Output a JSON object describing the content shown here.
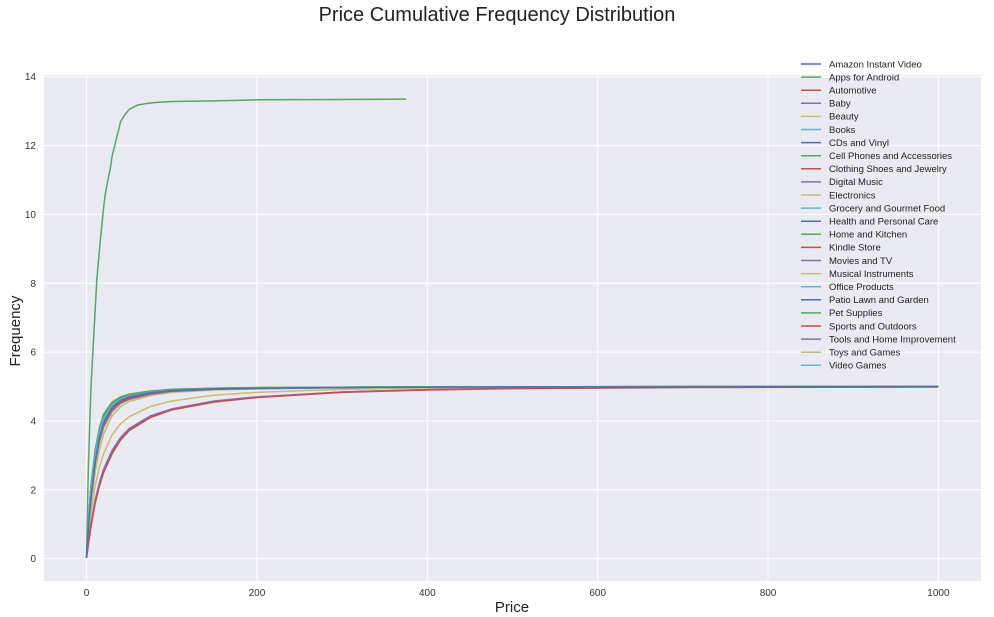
{
  "chart_data": {
    "type": "line",
    "title": "Price Cumulative Frequency Distribution",
    "xlabel": "Price",
    "ylabel": "Frequency",
    "xlim": [
      -50,
      1050
    ],
    "ylim": [
      -0.65,
      14.05
    ],
    "xticks": [
      0,
      200,
      400,
      600,
      800,
      1000
    ],
    "yticks": [
      0,
      2,
      4,
      6,
      8,
      10,
      12,
      14
    ],
    "grid": true,
    "legend_position": "top-right",
    "colors": [
      "#4c72b0",
      "#55a868",
      "#c44e52",
      "#8172b2",
      "#ccb974",
      "#64b5cd"
    ],
    "series": [
      {
        "name": "Amazon Instant Video",
        "x": [
          0,
          2,
          5,
          10,
          15,
          20,
          30,
          40,
          50,
          75,
          100,
          150,
          200,
          300,
          400,
          500,
          700,
          1000
        ],
        "y": [
          0.03,
          0.8,
          1.75,
          2.8,
          3.5,
          3.95,
          4.4,
          4.6,
          4.7,
          4.82,
          4.88,
          4.93,
          4.95,
          4.97,
          4.98,
          4.99,
          4.99,
          5.0
        ]
      },
      {
        "name": "Apps for Android",
        "x": [
          0,
          2,
          5,
          8,
          10,
          12,
          15,
          18,
          20,
          22,
          25,
          28,
          30,
          35,
          40,
          45,
          50,
          60,
          70,
          80,
          100,
          150,
          200,
          300,
          375
        ],
        "y": [
          0.1,
          2.6,
          4.9,
          6.3,
          7.2,
          8.1,
          8.95,
          9.7,
          10.2,
          10.6,
          11.0,
          11.35,
          11.7,
          12.2,
          12.7,
          12.9,
          13.05,
          13.18,
          13.22,
          13.25,
          13.28,
          13.3,
          13.33,
          13.34,
          13.35
        ]
      },
      {
        "name": "Automotive",
        "x": [
          0,
          2,
          5,
          10,
          15,
          20,
          30,
          40,
          50,
          75,
          100,
          150,
          200,
          300,
          400,
          500,
          700,
          1000
        ],
        "y": [
          0.02,
          0.4,
          0.9,
          1.6,
          2.1,
          2.5,
          3.05,
          3.45,
          3.72,
          4.1,
          4.32,
          4.55,
          4.68,
          4.83,
          4.9,
          4.94,
          4.97,
          4.99
        ]
      },
      {
        "name": "Baby",
        "x": [
          0,
          2,
          5,
          10,
          15,
          20,
          30,
          40,
          50,
          75,
          100,
          150,
          200,
          300,
          400,
          500,
          700,
          1000
        ],
        "y": [
          0.03,
          0.5,
          1.0,
          1.7,
          2.2,
          2.6,
          3.15,
          3.52,
          3.78,
          4.15,
          4.35,
          4.58,
          4.7,
          4.84,
          4.91,
          4.95,
          4.98,
          4.99
        ]
      },
      {
        "name": "Beauty",
        "x": [
          0,
          2,
          5,
          10,
          15,
          20,
          30,
          40,
          50,
          75,
          100,
          150,
          200,
          300,
          400,
          500,
          700,
          1000
        ],
        "y": [
          0.03,
          0.65,
          1.3,
          2.1,
          2.65,
          3.05,
          3.6,
          3.92,
          4.12,
          4.42,
          4.58,
          4.75,
          4.83,
          4.92,
          4.96,
          4.98,
          4.99,
          5.0
        ]
      },
      {
        "name": "Books",
        "x": [
          0,
          2,
          5,
          10,
          15,
          20,
          30,
          40,
          50,
          75,
          100,
          150,
          200,
          300,
          400,
          500,
          700,
          1000
        ],
        "y": [
          0.03,
          0.95,
          1.95,
          3.0,
          3.65,
          4.05,
          4.45,
          4.62,
          4.72,
          4.83,
          4.89,
          4.93,
          4.95,
          4.97,
          4.98,
          4.99,
          4.99,
          5.0
        ]
      },
      {
        "name": "CDs and Vinyl",
        "x": [
          0,
          2,
          5,
          10,
          15,
          20,
          30,
          40,
          50,
          75,
          100,
          150,
          200,
          300,
          400,
          500,
          700,
          1000
        ],
        "y": [
          0.03,
          0.9,
          1.9,
          2.95,
          3.6,
          4.0,
          4.42,
          4.6,
          4.7,
          4.82,
          4.88,
          4.93,
          4.95,
          4.97,
          4.98,
          4.99,
          4.99,
          5.0
        ]
      },
      {
        "name": "Cell Phones and Accessories",
        "x": [
          0,
          2,
          5,
          10,
          15,
          20,
          30,
          40,
          50,
          75,
          100,
          150,
          200,
          300,
          400,
          500,
          700,
          1000
        ],
        "y": [
          0.03,
          1.0,
          2.05,
          3.1,
          3.75,
          4.15,
          4.52,
          4.68,
          4.76,
          4.86,
          4.91,
          4.95,
          4.96,
          4.98,
          4.99,
          4.99,
          5.0,
          5.0
        ]
      },
      {
        "name": "Clothing Shoes and Jewelry",
        "x": [
          0,
          2,
          5,
          10,
          15,
          20,
          30,
          40,
          50,
          75,
          100,
          150,
          200,
          300,
          400,
          500,
          700,
          1000
        ],
        "y": [
          0.03,
          0.85,
          1.8,
          2.85,
          3.5,
          3.92,
          4.36,
          4.56,
          4.66,
          4.8,
          4.87,
          4.92,
          4.95,
          4.97,
          4.98,
          4.99,
          4.99,
          5.0
        ]
      },
      {
        "name": "Digital Music",
        "x": [
          0,
          2,
          5,
          10,
          15,
          20,
          30,
          40,
          50,
          75,
          100,
          150,
          200,
          300,
          400,
          500,
          700,
          1000
        ],
        "y": [
          0.03,
          0.8,
          1.7,
          2.75,
          3.42,
          3.85,
          4.3,
          4.52,
          4.63,
          4.78,
          4.86,
          4.92,
          4.94,
          4.97,
          4.98,
          4.99,
          4.99,
          5.0
        ]
      },
      {
        "name": "Electronics",
        "x": [
          0,
          2,
          5,
          10,
          15,
          20,
          30,
          40,
          50,
          75,
          100,
          150,
          200,
          300,
          400,
          500,
          700,
          1000
        ],
        "y": [
          0.03,
          0.75,
          1.6,
          2.65,
          3.32,
          3.78,
          4.26,
          4.5,
          4.62,
          4.77,
          4.85,
          4.91,
          4.94,
          4.97,
          4.98,
          4.99,
          4.99,
          5.0
        ]
      },
      {
        "name": "Grocery and Gourmet Food",
        "x": [
          0,
          2,
          5,
          10,
          15,
          20,
          30,
          40,
          50,
          75,
          100,
          150,
          200,
          300,
          400,
          500,
          700,
          1000
        ],
        "y": [
          0.03,
          0.95,
          2.0,
          3.05,
          3.7,
          4.1,
          4.48,
          4.65,
          4.74,
          4.85,
          4.9,
          4.94,
          4.96,
          4.98,
          4.99,
          4.99,
          5.0,
          5.0
        ]
      },
      {
        "name": "Health and Personal Care",
        "x": [
          0,
          2,
          5,
          10,
          15,
          20,
          30,
          40,
          50,
          75,
          100,
          150,
          200,
          300,
          400,
          500,
          700,
          1000
        ],
        "y": [
          0.03,
          0.88,
          1.85,
          2.9,
          3.55,
          3.96,
          4.4,
          4.58,
          4.68,
          4.81,
          4.88,
          4.93,
          4.95,
          4.97,
          4.98,
          4.99,
          4.99,
          5.0
        ]
      },
      {
        "name": "Home and Kitchen",
        "x": [
          0,
          2,
          5,
          10,
          15,
          20,
          30,
          40,
          50,
          75,
          100,
          150,
          200,
          300,
          400,
          500,
          700,
          1000
        ],
        "y": [
          0.03,
          1.05,
          2.1,
          3.15,
          3.8,
          4.2,
          4.55,
          4.7,
          4.78,
          4.87,
          4.92,
          4.95,
          4.97,
          4.98,
          4.99,
          4.99,
          5.0,
          5.0
        ]
      },
      {
        "name": "Kindle Store",
        "x": [
          0,
          2,
          5,
          10,
          15,
          20,
          30,
          40,
          50,
          75,
          100,
          150,
          200,
          300,
          400,
          500,
          700,
          1000
        ],
        "y": [
          0.02,
          0.45,
          0.95,
          1.65,
          2.15,
          2.55,
          3.1,
          3.5,
          3.75,
          4.12,
          4.33,
          4.56,
          4.69,
          4.84,
          4.91,
          4.95,
          4.98,
          4.99
        ]
      },
      {
        "name": "Movies and TV",
        "x": [
          0,
          2,
          5,
          10,
          15,
          20,
          30,
          40,
          50,
          75,
          100,
          150,
          200,
          300,
          400,
          500,
          700,
          1000
        ],
        "y": [
          0.03,
          0.82,
          1.75,
          2.8,
          3.45,
          3.88,
          4.33,
          4.54,
          4.65,
          4.79,
          4.86,
          4.92,
          4.94,
          4.97,
          4.98,
          4.99,
          4.99,
          5.0
        ]
      },
      {
        "name": "Musical Instruments",
        "x": [
          0,
          2,
          5,
          10,
          15,
          20,
          30,
          40,
          50,
          75,
          100,
          150,
          200,
          300,
          400,
          500,
          700,
          1000
        ],
        "y": [
          0.03,
          0.7,
          1.5,
          2.5,
          3.15,
          3.62,
          4.15,
          4.42,
          4.56,
          4.74,
          4.83,
          4.9,
          4.93,
          4.96,
          4.98,
          4.99,
          4.99,
          5.0
        ]
      },
      {
        "name": "Office Products",
        "x": [
          0,
          2,
          5,
          10,
          15,
          20,
          30,
          40,
          50,
          75,
          100,
          150,
          200,
          300,
          400,
          500,
          700,
          1000
        ],
        "y": [
          0.03,
          0.9,
          1.9,
          2.95,
          3.6,
          4.02,
          4.44,
          4.61,
          4.71,
          4.83,
          4.89,
          4.93,
          4.95,
          4.97,
          4.98,
          4.99,
          4.99,
          5.0
        ]
      },
      {
        "name": "Patio Lawn and Garden",
        "x": [
          0,
          2,
          5,
          10,
          15,
          20,
          30,
          40,
          50,
          75,
          100,
          150,
          200,
          300,
          400,
          500,
          700,
          1000
        ],
        "y": [
          0.03,
          0.78,
          1.68,
          2.72,
          3.38,
          3.82,
          4.28,
          4.51,
          4.62,
          4.78,
          4.85,
          4.91,
          4.94,
          4.97,
          4.98,
          4.99,
          4.99,
          5.0
        ]
      },
      {
        "name": "Pet Supplies",
        "x": [
          0,
          2,
          5,
          10,
          15,
          20,
          30,
          40,
          50,
          75,
          100,
          150,
          200,
          300,
          400,
          500,
          700,
          1000
        ],
        "y": [
          0.03,
          1.0,
          2.05,
          3.12,
          3.77,
          4.17,
          4.53,
          4.69,
          4.77,
          4.86,
          4.91,
          4.95,
          4.96,
          4.98,
          4.99,
          4.99,
          5.0,
          5.0
        ]
      },
      {
        "name": "Sports and Outdoors",
        "x": [
          0,
          2,
          5,
          10,
          15,
          20,
          30,
          40,
          50,
          75,
          100,
          150,
          200,
          300,
          400,
          500,
          700,
          1000
        ],
        "y": [
          0.03,
          0.86,
          1.82,
          2.87,
          3.52,
          3.94,
          4.38,
          4.57,
          4.67,
          4.8,
          4.87,
          4.92,
          4.95,
          4.97,
          4.98,
          4.99,
          4.99,
          5.0
        ]
      },
      {
        "name": "Tools and Home Improvement",
        "x": [
          0,
          2,
          5,
          10,
          15,
          20,
          30,
          40,
          50,
          75,
          100,
          150,
          200,
          300,
          400,
          500,
          700,
          1000
        ],
        "y": [
          0.03,
          0.84,
          1.78,
          2.83,
          3.48,
          3.9,
          4.35,
          4.55,
          4.66,
          4.8,
          4.87,
          4.92,
          4.95,
          4.97,
          4.98,
          4.99,
          4.99,
          5.0
        ]
      },
      {
        "name": "Toys and Games",
        "x": [
          0,
          2,
          5,
          10,
          15,
          20,
          30,
          40,
          50,
          75,
          100,
          150,
          200,
          300,
          400,
          500,
          700,
          1000
        ],
        "y": [
          0.03,
          0.92,
          1.92,
          2.97,
          3.62,
          4.03,
          4.45,
          4.62,
          4.72,
          4.84,
          4.89,
          4.94,
          4.95,
          4.97,
          4.98,
          4.99,
          4.99,
          5.0
        ]
      },
      {
        "name": "Video Games",
        "x": [
          0,
          2,
          5,
          10,
          15,
          20,
          30,
          40,
          50,
          75,
          100,
          150,
          200,
          300,
          400,
          500,
          700,
          1000
        ],
        "y": [
          0.03,
          0.88,
          1.86,
          2.92,
          3.57,
          3.99,
          4.42,
          4.6,
          4.7,
          4.82,
          4.88,
          4.93,
          4.95,
          4.97,
          4.98,
          4.99,
          4.99,
          5.0
        ]
      }
    ]
  }
}
